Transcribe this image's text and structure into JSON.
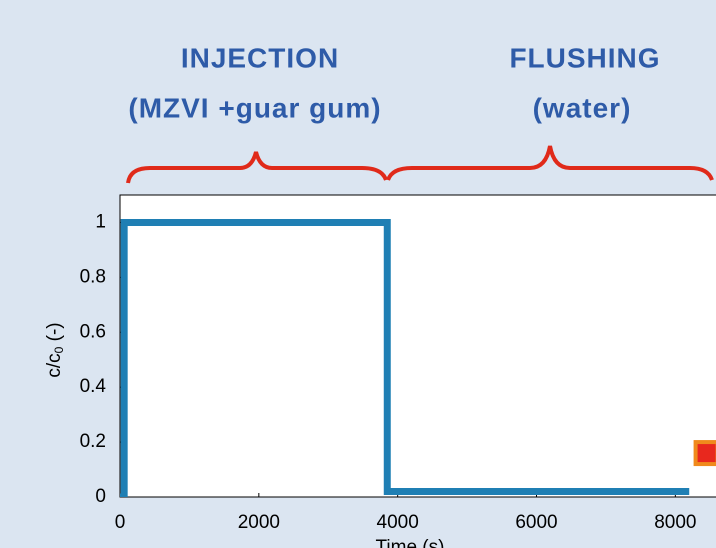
{
  "chart_data": {
    "type": "line",
    "annotations": [
      "INJECTION",
      "(MZVI +guar gum)",
      "FLUSHING",
      "(water)"
    ],
    "x_label": "Time (s)",
    "y_label": {
      "main": "c/c",
      "sub": "0",
      "rest": " (-)"
    },
    "xlim": [
      0,
      8600
    ],
    "ylim": [
      0,
      1.1
    ],
    "xticks": [
      0,
      2000,
      4000,
      6000,
      8000
    ],
    "yticks": [
      0,
      0.2,
      0.4,
      0.6,
      0.8,
      1
    ],
    "series": [
      {
        "color": "#1f7fb4",
        "x": [
          0,
          60,
          60,
          3850,
          3850,
          8200
        ],
        "values": [
          0,
          0,
          1,
          1,
          0.02,
          0.02
        ]
      }
    ],
    "markers": [
      {
        "x": 8450,
        "values": [
          0.16
        ],
        "color": "#e8281e",
        "edge": "#f08a1c"
      }
    ]
  }
}
